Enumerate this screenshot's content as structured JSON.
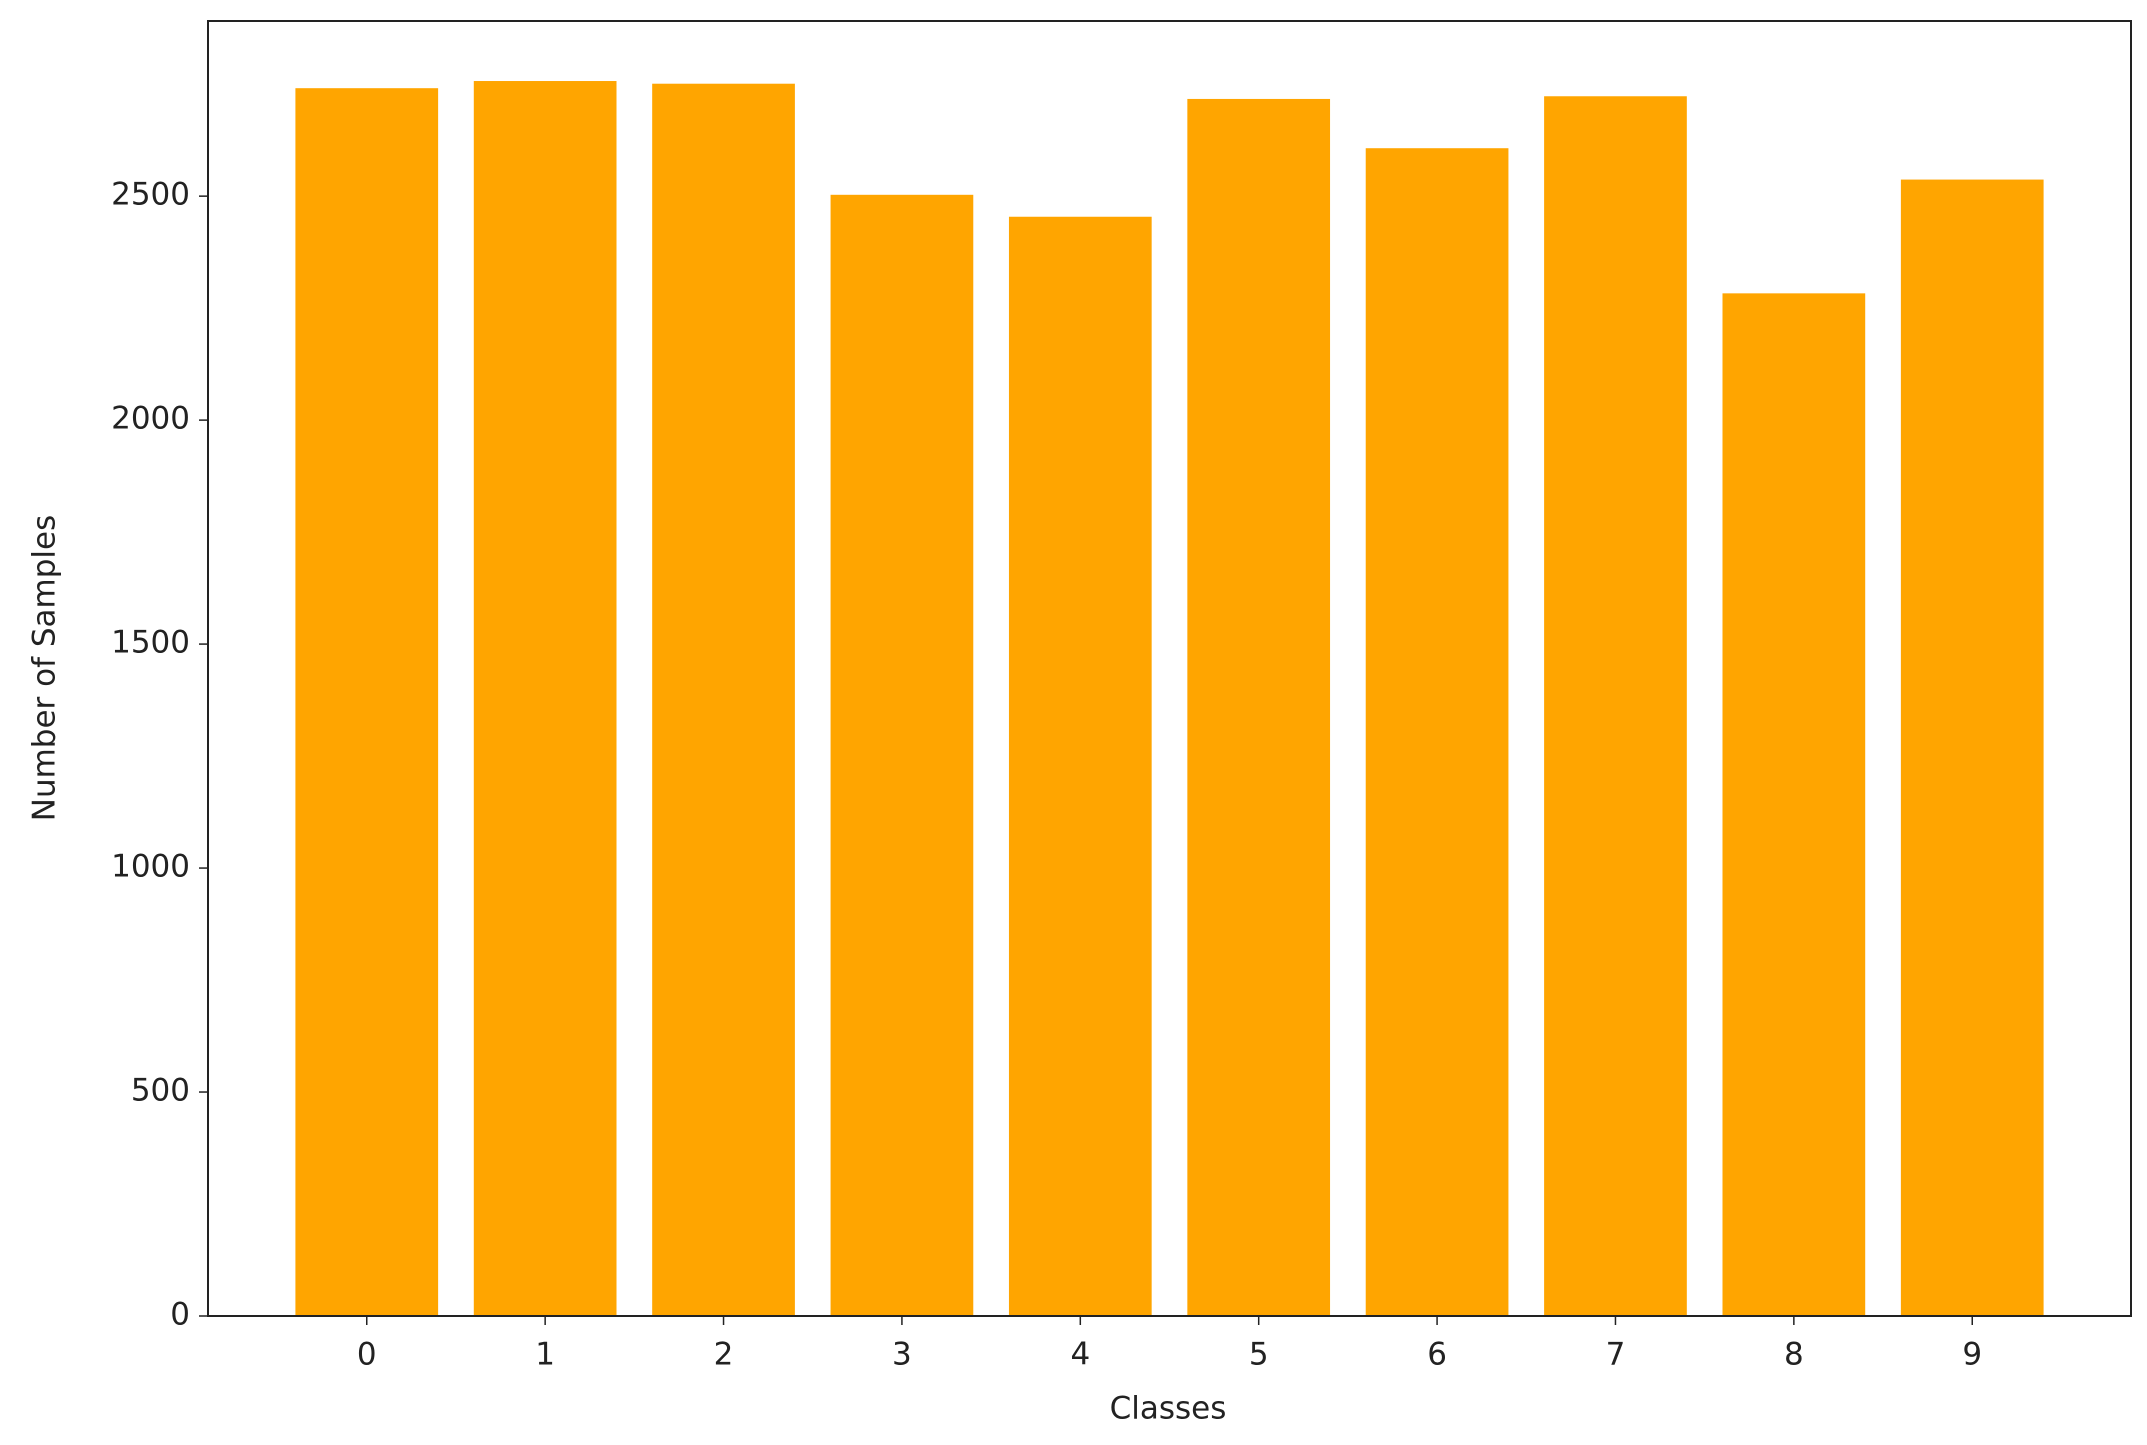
{
  "chart_data": {
    "type": "bar",
    "x_label": "Classes",
    "y_label": "Number of Samples",
    "categories": [
      "0",
      "1",
      "2",
      "3",
      "4",
      "5",
      "6",
      "7",
      "8",
      "9"
    ],
    "values": [
      2741,
      2757,
      2751,
      2503,
      2454,
      2717,
      2607,
      2723,
      2283,
      2537
    ],
    "color": "#ffa500",
    "ylim": [
      0,
      2891
    ],
    "yticks": [
      0,
      500,
      1000,
      1500,
      2000,
      2500
    ],
    "grid": false
  }
}
